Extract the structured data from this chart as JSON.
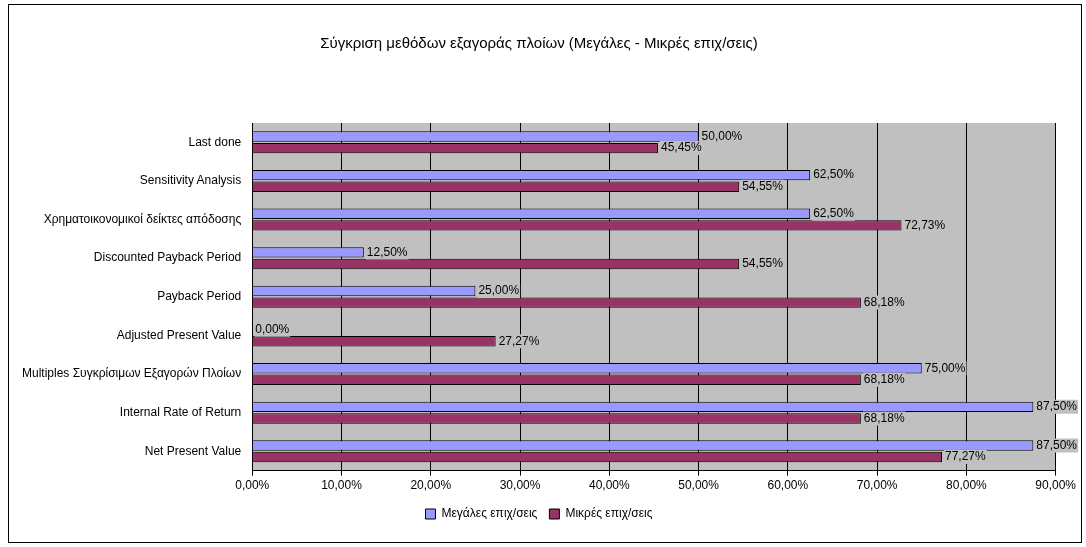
{
  "chart_data": {
    "type": "bar",
    "orientation": "horizontal",
    "title": "Σύγκριση μεθόδων εξαγοράς πλοίων (Μεγάλες - Μικρές επιχ/σεις)",
    "categories": [
      "Last done",
      "Sensitivity Analysis",
      "Χρηματοικονομικοί δείκτες απόδοσης",
      "Discounted Payback Period",
      "Payback Period",
      "Adjusted Present Value",
      "Multiples Συγκρίσιμων Εξαγορών Πλοίων",
      "Internal Rate of Return",
      "Net Present Value"
    ],
    "series": [
      {
        "name": "Μεγάλες επιχ/σεις",
        "color": "#9999ff",
        "values": [
          50.0,
          62.5,
          62.5,
          12.5,
          25.0,
          0.0,
          75.0,
          87.5,
          87.5
        ],
        "value_labels": [
          "50,00%",
          "62,50%",
          "62,50%",
          "12,50%",
          "25,00%",
          "0,00%",
          "75,00%",
          "87,50%",
          "87,50%"
        ]
      },
      {
        "name": "Μικρές επιχ/σεις",
        "color": "#993366",
        "values": [
          45.45,
          54.55,
          72.73,
          54.55,
          68.18,
          27.27,
          68.18,
          68.18,
          77.27
        ],
        "value_labels": [
          "45,45%",
          "54,55%",
          "72,73%",
          "54,55%",
          "68,18%",
          "27,27%",
          "68,18%",
          "68,18%",
          "77,27%"
        ]
      }
    ],
    "xlim": [
      0,
      90
    ],
    "xticks": [
      {
        "value": 0,
        "label": "0,00%"
      },
      {
        "value": 10,
        "label": "10,00%"
      },
      {
        "value": 20,
        "label": "20,00%"
      },
      {
        "value": 30,
        "label": "30,00%"
      },
      {
        "value": 40,
        "label": "40,00%"
      },
      {
        "value": 50,
        "label": "50,00%"
      },
      {
        "value": 60,
        "label": "60,00%"
      },
      {
        "value": 70,
        "label": "70,00%"
      },
      {
        "value": 80,
        "label": "80,00%"
      },
      {
        "value": 90,
        "label": "90,00%"
      }
    ],
    "grid": "x",
    "legend": "bottom"
  }
}
